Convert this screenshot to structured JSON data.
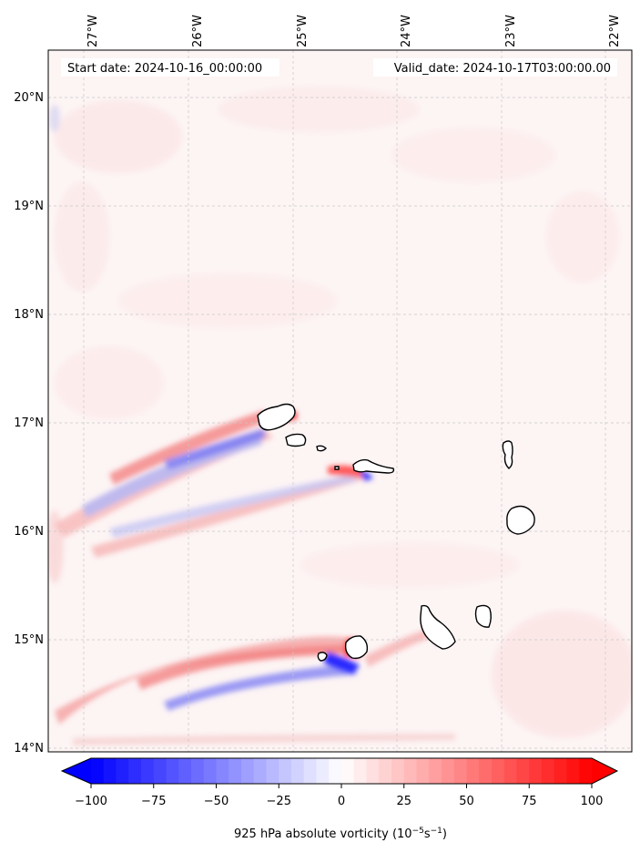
{
  "map": {
    "start_date": "Start date: 2024-10-16_00:00:00",
    "valid_date": "Valid_date: 2024-10-17T03:00:00.00",
    "lon_ticks": [
      "27°W",
      "26°W",
      "25°W",
      "24°W",
      "23°W",
      "22°W"
    ],
    "lat_ticks": [
      "20°N",
      "19°N",
      "18°N",
      "17°N",
      "16°N",
      "15°N",
      "14°N"
    ],
    "extent": {
      "lon_min": -27.33,
      "lon_max": -21.75,
      "lat_min": 13.95,
      "lat_max": 20.43
    }
  },
  "colorbar": {
    "label_main": "925 hPa absolute vorticity (10",
    "label_exp1": "−5",
    "label_mid": "s",
    "label_exp2": "−1",
    "label_end": ")",
    "ticks": [
      "−100",
      "−75",
      "−50",
      "−25",
      "0",
      "25",
      "50",
      "75",
      "100"
    ],
    "min": -100,
    "max": 100,
    "levels": 41,
    "negative_color": "#0000ff",
    "positive_color": "#ff0000",
    "colormap": "bwr"
  },
  "colors": {
    "background": "#fdf4f4",
    "coast": "#000000",
    "grid": "#c8c8c8"
  }
}
